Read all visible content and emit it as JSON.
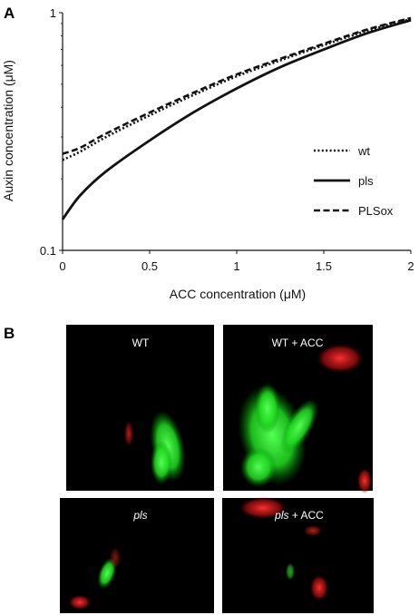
{
  "panel_a_label": "A",
  "panel_b_label": "B",
  "chart_data": {
    "type": "line",
    "xlabel": "ACC concentration (μM)",
    "ylabel": "Auxin concentration (μM)",
    "xlim": [
      0,
      2
    ],
    "ylim": [
      0.1,
      1
    ],
    "yscale": "log",
    "xticks": [
      0,
      0.5,
      1,
      1.5,
      2
    ],
    "xtick_labels": [
      "0",
      "0.5",
      "1",
      "1.5",
      "2"
    ],
    "yticks": [
      0.1,
      1
    ],
    "ytick_labels": [
      "0.1",
      "1"
    ],
    "grid": false,
    "legend_position": "right",
    "series": [
      {
        "name": "wt",
        "style": "dotted",
        "x": [
          0,
          0.1,
          0.25,
          0.5,
          0.75,
          1,
          1.25,
          1.5,
          1.75,
          2
        ],
        "y": [
          0.24,
          0.26,
          0.3,
          0.37,
          0.45,
          0.54,
          0.63,
          0.73,
          0.84,
          0.94
        ]
      },
      {
        "name": "pls",
        "style": "solid",
        "x": [
          0,
          0.1,
          0.25,
          0.5,
          0.75,
          1,
          1.25,
          1.5,
          1.75,
          2
        ],
        "y": [
          0.135,
          0.17,
          0.215,
          0.29,
          0.38,
          0.48,
          0.59,
          0.7,
          0.82,
          0.93
        ]
      },
      {
        "name": "PLSox",
        "style": "dashed",
        "x": [
          0,
          0.1,
          0.25,
          0.5,
          0.75,
          1,
          1.25,
          1.5,
          1.75,
          2
        ],
        "y": [
          0.255,
          0.27,
          0.31,
          0.38,
          0.46,
          0.55,
          0.64,
          0.74,
          0.85,
          0.95
        ]
      }
    ]
  },
  "micrographs": [
    {
      "label": "WT",
      "italic_part": "",
      "rest": "WT"
    },
    {
      "label": "WT + ACC",
      "italic_part": "",
      "rest": "WT + ACC"
    },
    {
      "label": "pls",
      "italic_part": "pls",
      "rest": ""
    },
    {
      "label": "pls + ACC",
      "italic_part": "pls",
      "rest": " + ACC"
    }
  ]
}
